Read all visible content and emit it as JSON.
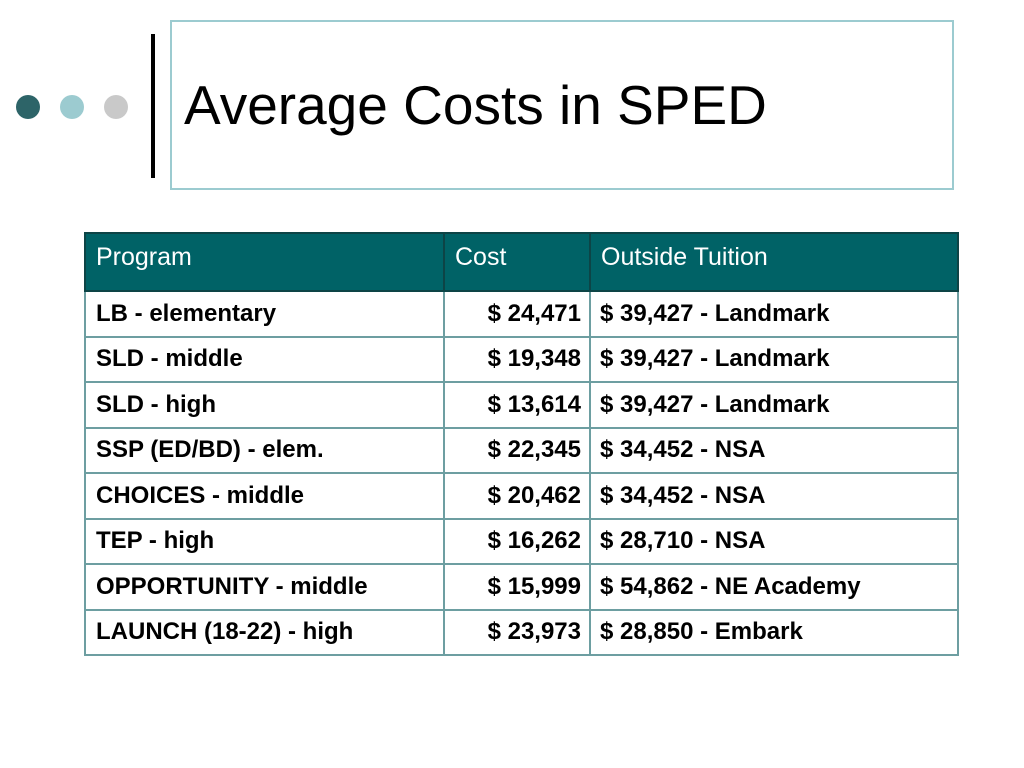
{
  "slide": {
    "title": "Average Costs in SPED"
  },
  "colors": {
    "dot_dark": "#2d6468",
    "dot_mid": "#9ccbd0",
    "dot_light": "#c9c9c9",
    "title_border": "#9ccbd0",
    "header_bg": "#006266"
  },
  "table": {
    "headers": [
      "Program",
      "Cost",
      "Outside Tuition"
    ],
    "rows": [
      {
        "program": "LB - elementary",
        "cost": "$ 24,471",
        "tuition": "$ 39,427 - Landmark"
      },
      {
        "program": "SLD - middle",
        "cost": "$ 19,348",
        "tuition": "$ 39,427 - Landmark"
      },
      {
        "program": "SLD - high",
        "cost": "$ 13,614",
        "tuition": "$ 39,427 - Landmark"
      },
      {
        "program": "SSP (ED/BD) - elem.",
        "cost": "$ 22,345",
        "tuition": "$ 34,452 - NSA"
      },
      {
        "program": "CHOICES - middle",
        "cost": "$ 20,462",
        "tuition": "$ 34,452 - NSA"
      },
      {
        "program": "TEP - high",
        "cost": "$ 16,262",
        "tuition": "$ 28,710 - NSA"
      },
      {
        "program": "OPPORTUNITY - middle",
        "cost": "$ 15,999",
        "tuition": "$ 54,862 - NE Academy"
      },
      {
        "program": "LAUNCH (18-22) - high",
        "cost": "$ 23,973",
        "tuition": "$ 28,850 - Embark"
      }
    ]
  }
}
